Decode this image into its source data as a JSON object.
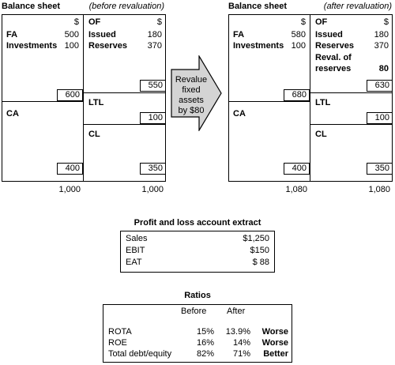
{
  "left_sheet": {
    "title": "Balance sheet",
    "note": "(before revaluation)",
    "assets": {
      "currency": "$",
      "fa_label": "FA",
      "fa_value": "500",
      "inv_label": "Investments",
      "inv_value": "100",
      "fixed_total": "600",
      "ca_label": "CA",
      "ca_total": "400",
      "grand_total": "1,000"
    },
    "liabilities": {
      "of_label": "OF",
      "currency": "$",
      "issued_label": "Issued",
      "issued_value": "180",
      "reserves_label": "Reserves",
      "reserves_value": "370",
      "of_total": "550",
      "ltl_label": "LTL",
      "ltl_total": "100",
      "cl_label": "CL",
      "cl_total": "350",
      "grand_total": "1,000"
    }
  },
  "arrow": {
    "lines": [
      "Revalue",
      "fixed",
      "assets",
      "by $80"
    ]
  },
  "right_sheet": {
    "title": "Balance sheet",
    "note": "(after revaluation)",
    "assets": {
      "currency": "$",
      "fa_label": "FA",
      "fa_value": "580",
      "inv_label": "Investments",
      "inv_value": "100",
      "fixed_total": "680",
      "ca_label": "CA",
      "ca_total": "400",
      "grand_total": "1,080"
    },
    "liabilities": {
      "of_label": "OF",
      "currency": "$",
      "issued_label": "Issued",
      "issued_value": "180",
      "reserves_label": "Reserves",
      "reserves_value": "370",
      "reval_label_1": "Reval. of",
      "reval_label_2": "reserves",
      "reval_value": "80",
      "of_total": "630",
      "ltl_label": "LTL",
      "ltl_total": "100",
      "cl_label": "CL",
      "cl_total": "350",
      "grand_total": "1,080"
    }
  },
  "pl": {
    "title": "Profit and loss account extract",
    "rows": [
      {
        "label": "Sales",
        "value": "$1,250"
      },
      {
        "label": "EBIT",
        "value": "$150"
      },
      {
        "label": "EAT",
        "value": "$ 88"
      }
    ]
  },
  "ratios": {
    "title": "Ratios",
    "headers": [
      "Before",
      "After"
    ],
    "rows": [
      {
        "label": "ROTA",
        "before": "15%",
        "after": "13.9%",
        "verdict": "Worse"
      },
      {
        "label": "ROE",
        "before": "16%",
        "after": "14%",
        "verdict": "Worse"
      },
      {
        "label": "Total debt/equity",
        "before": "82%",
        "after": "71%",
        "verdict": "Better"
      }
    ]
  }
}
